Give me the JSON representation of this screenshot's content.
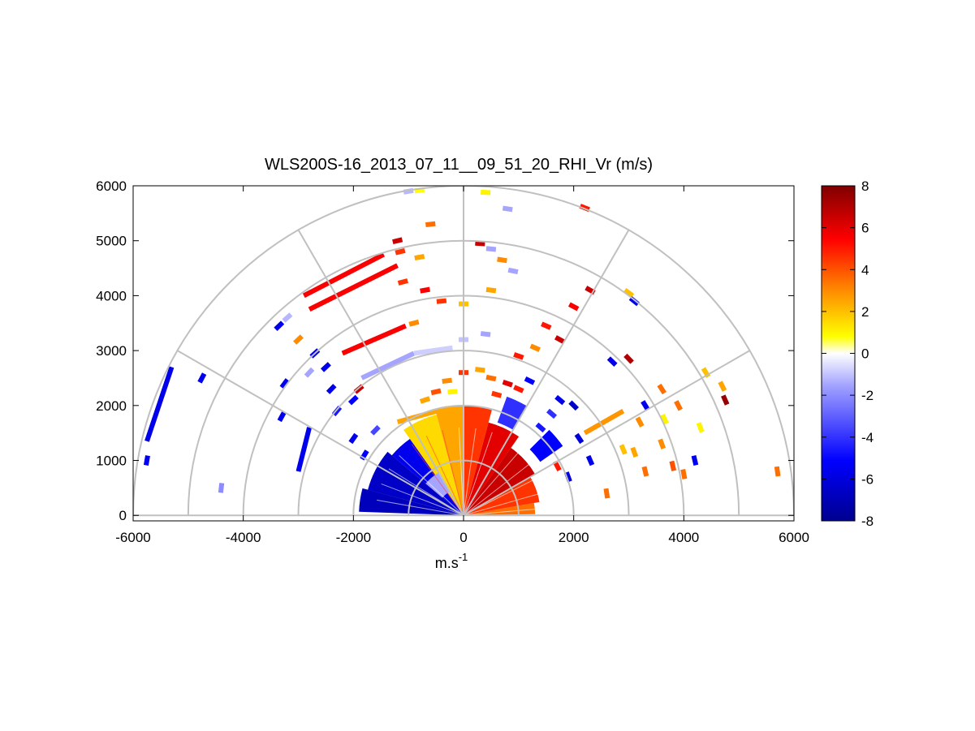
{
  "chart_data": {
    "type": "heatmap",
    "title": "WLS200S-16_2013_07_11__09_51_20_RHI_Vr (m/s)",
    "xlabel": "m.s",
    "xlabel_sup": "-1",
    "ylabel": "",
    "xlim": [
      -6000,
      6000
    ],
    "ylim": [
      -100,
      6000
    ],
    "xticks": [
      "-6000",
      "-4000",
      "-2000",
      "0",
      "2000",
      "4000",
      "6000"
    ],
    "yticks": [
      "0",
      "1000",
      "2000",
      "3000",
      "4000",
      "5000",
      "6000"
    ],
    "polar_rings": [
      1000,
      2000,
      3000,
      4000,
      5000,
      6000
    ],
    "polar_spokes_deg": [
      30,
      60,
      90,
      120,
      150
    ],
    "colorbar": {
      "range": [
        -8,
        8
      ],
      "ticks": [
        "8",
        "6",
        "4",
        "2",
        "0",
        "-2",
        "-4",
        "-6",
        "-8"
      ],
      "colors": [
        "#00008f",
        "#0000ff",
        "#9f9fff",
        "#ffffff",
        "#ffff00",
        "#ff8000",
        "#ff0000",
        "#800000"
      ]
    },
    "segments": [
      {
        "r0": 50,
        "r1": 1300,
        "a0": 1,
        "a1": 10,
        "v": 3.5
      },
      {
        "r0": 50,
        "r1": 1400,
        "a0": 10,
        "a1": 30,
        "v": 4.5
      },
      {
        "r0": 50,
        "r1": 1500,
        "a0": 30,
        "a1": 55,
        "v": 6.5
      },
      {
        "r0": 50,
        "r1": 1750,
        "a0": 55,
        "a1": 75,
        "v": 6.0
      },
      {
        "r0": 50,
        "r1": 2000,
        "a0": 75,
        "a1": 90,
        "v": 4.5
      },
      {
        "r0": 50,
        "r1": 2000,
        "a0": 90,
        "a1": 105,
        "v": 2.5
      },
      {
        "r0": 50,
        "r1": 1900,
        "a0": 105,
        "a1": 125,
        "v": 1.5
      },
      {
        "r0": 50,
        "r1": 1700,
        "a0": 125,
        "a1": 140,
        "v": -5.5
      },
      {
        "r0": 50,
        "r1": 1800,
        "a0": 140,
        "a1": 165,
        "v": -6.5
      },
      {
        "r0": 50,
        "r1": 1900,
        "a0": 165,
        "a1": 178,
        "v": -6.8
      },
      {
        "r0": 500,
        "r1": 900,
        "a0": 120,
        "a1": 140,
        "v": -1.5
      },
      {
        "r0": 1700,
        "r1": 2200,
        "a0": 35,
        "a1": 45,
        "v": -5
      },
      {
        "r0": 1800,
        "r1": 2300,
        "a0": 60,
        "a1": 70,
        "v": -4
      }
    ],
    "streaks": [
      {
        "x1": -5750,
        "y1": 1350,
        "x2": -5300,
        "y2": 2700,
        "v": -5.5
      },
      {
        "x1": -3000,
        "y1": 800,
        "x2": -2800,
        "y2": 1600,
        "v": -5.5
      },
      {
        "x1": -2900,
        "y1": 4000,
        "x2": -1450,
        "y2": 4750,
        "v": 5.5
      },
      {
        "x1": -2800,
        "y1": 3750,
        "x2": -1200,
        "y2": 4550,
        "v": 5.5
      },
      {
        "x1": -2200,
        "y1": 2950,
        "x2": -1050,
        "y2": 3450,
        "v": 5.5
      },
      {
        "x1": -1850,
        "y1": 2500,
        "x2": -900,
        "y2": 2950,
        "v": -1.5
      },
      {
        "x1": -900,
        "y1": 2950,
        "x2": -200,
        "y2": 3050,
        "v": -0.8
      },
      {
        "x1": -1200,
        "y1": 1700,
        "x2": -300,
        "y2": 1950,
        "v": 2.5
      },
      {
        "x1": 2200,
        "y1": 1500,
        "x2": 2900,
        "y2": 1900,
        "v": 2.8
      }
    ],
    "points": [
      {
        "x": -1000,
        "y": 5900,
        "v": -1.2
      },
      {
        "x": -800,
        "y": 5920,
        "v": 0.8
      },
      {
        "x": 400,
        "y": 5880,
        "v": 1.0
      },
      {
        "x": 800,
        "y": 5580,
        "v": -1.5
      },
      {
        "x": 2200,
        "y": 5600,
        "v": 5.0
      },
      {
        "x": -1200,
        "y": 5000,
        "v": 6.5
      },
      {
        "x": -1150,
        "y": 4800,
        "v": 4.5
      },
      {
        "x": -800,
        "y": 4700,
        "v": 2.5
      },
      {
        "x": -600,
        "y": 5300,
        "v": 3.5
      },
      {
        "x": 300,
        "y": 4950,
        "v": 6.5
      },
      {
        "x": 500,
        "y": 4850,
        "v": -1.5
      },
      {
        "x": 700,
        "y": 4650,
        "v": 3.0
      },
      {
        "x": 900,
        "y": 4450,
        "v": -1.5
      },
      {
        "x": 2300,
        "y": 4100,
        "v": 6.5
      },
      {
        "x": 3000,
        "y": 4050,
        "v": 2.0
      },
      {
        "x": 3100,
        "y": 3900,
        "v": -5.5
      },
      {
        "x": -1100,
        "y": 4250,
        "v": 4.5
      },
      {
        "x": -700,
        "y": 4100,
        "v": 5.5
      },
      {
        "x": -400,
        "y": 3900,
        "v": 4.5
      },
      {
        "x": 0,
        "y": 3850,
        "v": 2.0
      },
      {
        "x": 500,
        "y": 4100,
        "v": 2.5
      },
      {
        "x": 2000,
        "y": 3800,
        "v": 5.5
      },
      {
        "x": 1500,
        "y": 3450,
        "v": 5.0
      },
      {
        "x": 1750,
        "y": 3200,
        "v": 6.5
      },
      {
        "x": -900,
        "y": 3500,
        "v": 3.0
      },
      {
        "x": 400,
        "y": 3300,
        "v": -1.5
      },
      {
        "x": 0,
        "y": 3200,
        "v": -1.0
      },
      {
        "x": 1300,
        "y": 3050,
        "v": 3.0
      },
      {
        "x": 1000,
        "y": 2900,
        "v": 5.0
      },
      {
        "x": 2700,
        "y": 2800,
        "v": -5.5
      },
      {
        "x": 3000,
        "y": 2850,
        "v": 7.0
      },
      {
        "x": 4400,
        "y": 2600,
        "v": 2.0
      },
      {
        "x": 4700,
        "y": 2350,
        "v": 2.5
      },
      {
        "x": 4750,
        "y": 2100,
        "v": 7.5
      },
      {
        "x": 3600,
        "y": 2300,
        "v": 3.5
      },
      {
        "x": 3300,
        "y": 2000,
        "v": -5.5
      },
      {
        "x": 3900,
        "y": 2000,
        "v": 3.5
      },
      {
        "x": 3650,
        "y": 1750,
        "v": 1.0
      },
      {
        "x": 4300,
        "y": 1600,
        "v": 1.0
      },
      {
        "x": 3200,
        "y": 1700,
        "v": 3.0
      },
      {
        "x": 2900,
        "y": 1200,
        "v": 2.0
      },
      {
        "x": 3100,
        "y": 1150,
        "v": 2.5
      },
      {
        "x": 3600,
        "y": 1300,
        "v": 3.0
      },
      {
        "x": 4200,
        "y": 1000,
        "v": -5.5
      },
      {
        "x": 3800,
        "y": 900,
        "v": 4.0
      },
      {
        "x": 3300,
        "y": 800,
        "v": 3.5
      },
      {
        "x": 4000,
        "y": 750,
        "v": 3.5
      },
      {
        "x": 5700,
        "y": 800,
        "v": 3.5
      },
      {
        "x": 2600,
        "y": 400,
        "v": 3.5
      },
      {
        "x": -3200,
        "y": 3600,
        "v": -1.2
      },
      {
        "x": -3350,
        "y": 3450,
        "v": -5.5
      },
      {
        "x": -3000,
        "y": 3200,
        "v": 3.0
      },
      {
        "x": -2700,
        "y": 2950,
        "v": -5.5
      },
      {
        "x": -2500,
        "y": 2700,
        "v": -5.5
      },
      {
        "x": -2800,
        "y": 2600,
        "v": -1.5
      },
      {
        "x": -3250,
        "y": 2400,
        "v": -5.5
      },
      {
        "x": -2400,
        "y": 2300,
        "v": -5.5
      },
      {
        "x": -1900,
        "y": 2300,
        "v": 6.5
      },
      {
        "x": -2000,
        "y": 2100,
        "v": -5.0
      },
      {
        "x": -2300,
        "y": 1900,
        "v": -4.5
      },
      {
        "x": -3300,
        "y": 1800,
        "v": -5.5
      },
      {
        "x": -4750,
        "y": 2500,
        "v": -5.5
      },
      {
        "x": -5750,
        "y": 1000,
        "v": -5.5
      },
      {
        "x": -4400,
        "y": 500,
        "v": -2.0
      },
      {
        "x": -2000,
        "y": 1400,
        "v": -5.5
      },
      {
        "x": -1600,
        "y": 1550,
        "v": -3.5
      },
      {
        "x": -1800,
        "y": 1100,
        "v": -5.0
      },
      {
        "x": 1750,
        "y": 2100,
        "v": -5.5
      },
      {
        "x": 2000,
        "y": 2000,
        "v": -6.5
      },
      {
        "x": 1600,
        "y": 1850,
        "v": -4.0
      },
      {
        "x": 1400,
        "y": 1600,
        "v": -4.5
      },
      {
        "x": 2100,
        "y": 1400,
        "v": -6.0
      },
      {
        "x": 2300,
        "y": 1000,
        "v": -5.5
      },
      {
        "x": 1700,
        "y": 900,
        "v": 5.0
      },
      {
        "x": 1900,
        "y": 700,
        "v": -6.0
      },
      {
        "x": 800,
        "y": 2400,
        "v": 6.0
      },
      {
        "x": 1000,
        "y": 2300,
        "v": 5.0
      },
      {
        "x": 1200,
        "y": 2450,
        "v": -5.0
      },
      {
        "x": 500,
        "y": 2500,
        "v": 3.5
      },
      {
        "x": 300,
        "y": 2650,
        "v": 2.5
      },
      {
        "x": 0,
        "y": 2600,
        "v": 4.5
      },
      {
        "x": -300,
        "y": 2450,
        "v": 3.0
      },
      {
        "x": -500,
        "y": 2250,
        "v": 4.0
      },
      {
        "x": -200,
        "y": 2250,
        "v": 1.0
      },
      {
        "x": 600,
        "y": 2200,
        "v": 4.5
      },
      {
        "x": -700,
        "y": 2100,
        "v": 2.5
      }
    ]
  }
}
